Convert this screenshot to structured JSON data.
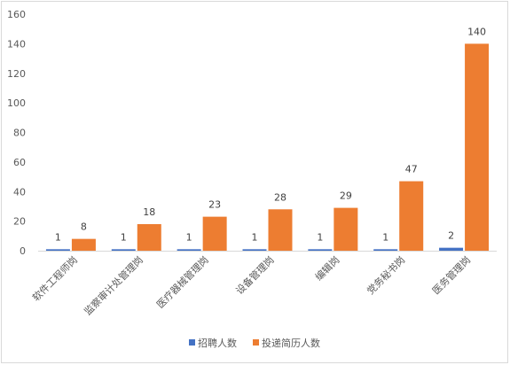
{
  "chart_data": {
    "type": "bar",
    "categories": [
      "软件工程师岗",
      "监察审计处管理岗",
      "医疗器械管理岗",
      "设备管理岗",
      "编辑岗",
      "党务秘书岗",
      "医务管理岗"
    ],
    "series": [
      {
        "name": "招聘人数",
        "color": "#4472C4",
        "values": [
          1,
          1,
          1,
          1,
          1,
          1,
          2
        ]
      },
      {
        "name": "投递简历人数",
        "color": "#ED7D31",
        "values": [
          8,
          18,
          23,
          28,
          29,
          47,
          140
        ]
      }
    ],
    "ylim": [
      0,
      160
    ],
    "yticks": [
      0,
      20,
      40,
      60,
      80,
      100,
      120,
      140,
      160
    ],
    "grid": false,
    "legend_position": "bottom"
  }
}
